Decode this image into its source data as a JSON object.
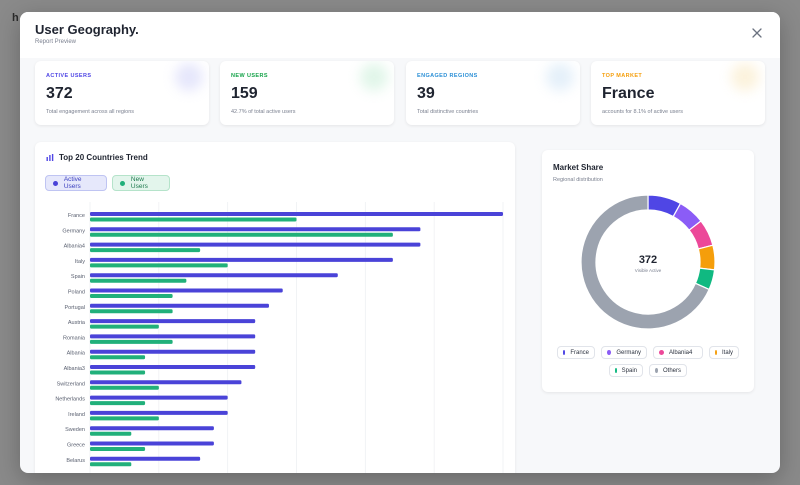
{
  "backdrop": {
    "ghost_text": "h"
  },
  "modal": {
    "title": "User Geography.",
    "subtitle": "Report Preview"
  },
  "stats": [
    {
      "label": "ACTIVE USERS",
      "value": "372",
      "desc": "Total engagement across all regions",
      "color": "#4f46e5",
      "glow": "#c7c9f7"
    },
    {
      "label": "NEW USERS",
      "value": "159",
      "desc": "42.7% of total active users",
      "color": "#16a34a",
      "glow": "#bdebcf"
    },
    {
      "label": "ENGAGED REGIONS",
      "value": "39",
      "desc": "Total distinctive countries",
      "color": "#2b8fd6",
      "glow": "#c5def3"
    },
    {
      "label": "TOP MARKET",
      "value": "France",
      "desc": "accounts for 8.1% of active users",
      "color": "#f59e0b",
      "glow": "#f8e3b3"
    }
  ],
  "trend": {
    "title": "Top 20 Countries Trend",
    "legend_active": "Active Users",
    "legend_new": "New Users",
    "color_active": "#4a43d8",
    "color_new": "#21b07a"
  },
  "chart_data": [
    {
      "type": "bar",
      "orientation": "horizontal",
      "title": "Top 20 Countries Trend",
      "categories": [
        "France",
        "Germany",
        "Albania4",
        "Italy",
        "Spain",
        "Poland",
        "Portugal",
        "Austria",
        "Romania",
        "Albania",
        "Albania3",
        "Switzerland",
        "Netherlands",
        "Ireland",
        "Sweden",
        "Greece",
        "Belarus"
      ],
      "series": [
        {
          "name": "Active Users",
          "values": [
            30,
            24,
            24,
            22,
            18,
            14,
            13,
            12,
            12,
            12,
            12,
            11,
            10,
            10,
            9,
            9,
            8
          ]
        },
        {
          "name": "New Users",
          "values": [
            15,
            22,
            8,
            10,
            7,
            6,
            6,
            5,
            6,
            4,
            4,
            5,
            4,
            5,
            3,
            4,
            3
          ]
        }
      ],
      "xlim": [
        0,
        30
      ],
      "grid": true
    },
    {
      "type": "pie",
      "title": "Market Share",
      "subtitle": "Regional distribution",
      "center_value": "372",
      "center_label": "Visible Active",
      "labels": [
        "France",
        "Germany",
        "Albania4",
        "Italy",
        "Spain",
        "Others"
      ],
      "values": [
        30,
        24,
        24,
        22,
        18,
        254
      ],
      "colors": [
        "#4f46e5",
        "#8b5cf6",
        "#ec4899",
        "#f59e0b",
        "#10b981",
        "#9ca3af"
      ],
      "legend": "bottom"
    }
  ]
}
